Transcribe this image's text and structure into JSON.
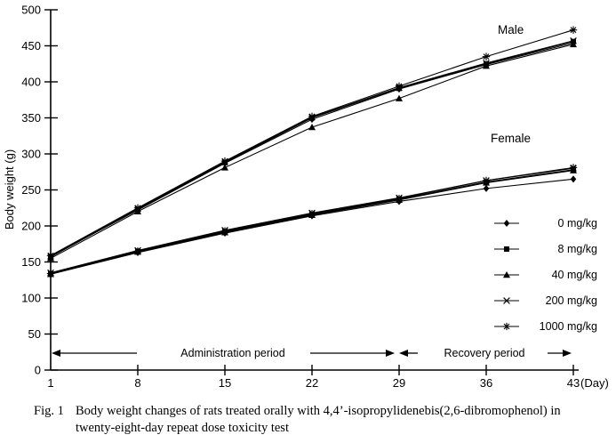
{
  "figure": {
    "caption": {
      "label": "Fig. 1",
      "line1": "Body weight changes of rats treated orally with 4,4’-isopropylidenebis(2,6-dibromophenol) in",
      "line2": "twenty-eight-day repeat dose toxicity test"
    }
  },
  "chart_data": {
    "type": "line",
    "title": "",
    "ylabel": "Body weight (g)",
    "xlabel_unit": "(Day)",
    "ylim": [
      0,
      500
    ],
    "ytick_step": 50,
    "x": [
      1,
      8,
      15,
      22,
      29,
      36,
      43
    ],
    "group_labels": {
      "male": "Male",
      "female": "Female"
    },
    "annotations": {
      "administration_label": "Administration period",
      "administration_span_days": [
        1,
        29
      ],
      "recovery_label": "Recovery period",
      "recovery_span_days": [
        29,
        43
      ]
    },
    "legend_position": "middle-right",
    "grid": "off",
    "line_color": "#000000",
    "background_color": "#ffffff",
    "legend": [
      {
        "label": "0 mg/kg",
        "marker": "diamond"
      },
      {
        "label": "8 mg/kg",
        "marker": "square"
      },
      {
        "label": "40 mg/kg",
        "marker": "triangle"
      },
      {
        "label": "200 mg/kg",
        "marker": "x"
      },
      {
        "label": "1000 mg/kg",
        "marker": "asterisk"
      }
    ],
    "series": [
      {
        "name": "Male 0 mg/kg",
        "group": "Male",
        "dose": "0 mg/kg",
        "marker": "diamond",
        "values": [
          158,
          222,
          287,
          348,
          390,
          424,
          454
        ]
      },
      {
        "name": "Male 8 mg/kg",
        "group": "Male",
        "dose": "8 mg/kg",
        "marker": "square",
        "values": [
          157,
          223,
          288,
          350,
          391,
          425,
          456
        ]
      },
      {
        "name": "Male 40 mg/kg",
        "group": "Male",
        "dose": "40 mg/kg",
        "marker": "triangle",
        "values": [
          155,
          220,
          281,
          337,
          377,
          422,
          452
        ]
      },
      {
        "name": "Male 200 mg/kg",
        "group": "Male",
        "dose": "200 mg/kg",
        "marker": "x",
        "values": [
          158,
          224,
          289,
          351,
          392,
          426,
          457
        ]
      },
      {
        "name": "Male 1000 mg/kg",
        "group": "Male",
        "dose": "1000 mg/kg",
        "marker": "asterisk",
        "values": [
          159,
          225,
          290,
          352,
          394,
          435,
          472
        ]
      },
      {
        "name": "Female 0 mg/kg",
        "group": "Female",
        "dose": "0 mg/kg",
        "marker": "diamond",
        "values": [
          133,
          163,
          190,
          214,
          234,
          252,
          265
        ]
      },
      {
        "name": "Female 8 mg/kg",
        "group": "Female",
        "dose": "8 mg/kg",
        "marker": "square",
        "values": [
          134,
          165,
          192,
          216,
          237,
          261,
          278
        ]
      },
      {
        "name": "Female 40 mg/kg",
        "group": "Female",
        "dose": "40 mg/kg",
        "marker": "triangle",
        "values": [
          133,
          164,
          191,
          215,
          236,
          260,
          277
        ]
      },
      {
        "name": "Female 200 mg/kg",
        "group": "Female",
        "dose": "200 mg/kg",
        "marker": "x",
        "values": [
          135,
          166,
          194,
          218,
          239,
          263,
          280
        ]
      },
      {
        "name": "Female 1000 mg/kg",
        "group": "Female",
        "dose": "1000 mg/kg",
        "marker": "asterisk",
        "values": [
          134,
          165,
          193,
          217,
          238,
          263,
          281
        ]
      }
    ]
  }
}
